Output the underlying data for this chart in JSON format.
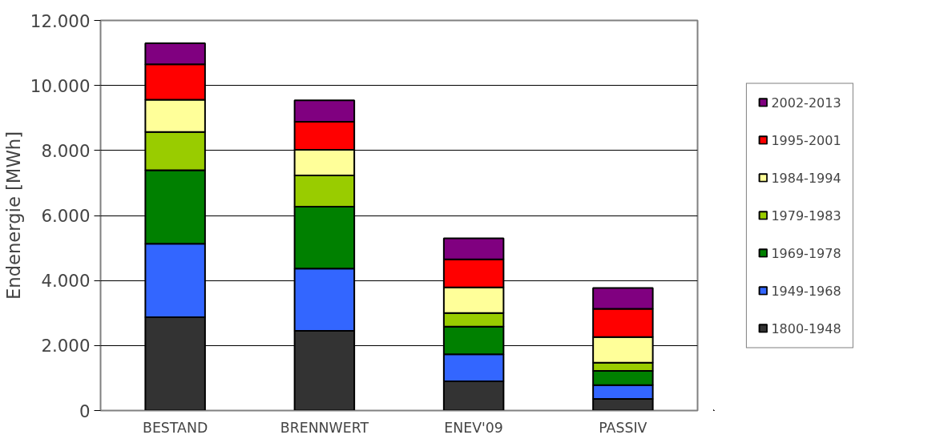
{
  "chart_data": {
    "type": "bar",
    "stacked": true,
    "ylabel": "Endenergie [MWh]",
    "categories": [
      "BESTAND",
      "BRENNWERT",
      "ENEV'09",
      "PASSIV"
    ],
    "series": [
      {
        "name": "1800-1948",
        "color": "#333333",
        "values": [
          2870,
          2450,
          900,
          360
        ]
      },
      {
        "name": "1949-1968",
        "color": "#3366ff",
        "values": [
          2260,
          1920,
          830,
          420
        ]
      },
      {
        "name": "1969-1978",
        "color": "#008000",
        "values": [
          2260,
          1900,
          850,
          440
        ]
      },
      {
        "name": "1979-1983",
        "color": "#99cc00",
        "values": [
          1180,
          960,
          420,
          250
        ]
      },
      {
        "name": "1984-1994",
        "color": "#ffff99",
        "values": [
          990,
          790,
          790,
          790
        ]
      },
      {
        "name": "1995-2001",
        "color": "#ff0000",
        "values": [
          1090,
          860,
          860,
          870
        ]
      },
      {
        "name": "2002-2013",
        "color": "#800080",
        "values": [
          650,
          660,
          650,
          640
        ]
      }
    ],
    "ylim": [
      0,
      12000
    ],
    "yticks": [
      {
        "value": 0,
        "label": "0"
      },
      {
        "value": 2000,
        "label": "2.000"
      },
      {
        "value": 4000,
        "label": "4.000"
      },
      {
        "value": 6000,
        "label": "6.000"
      },
      {
        "value": 8000,
        "label": "8.000"
      },
      {
        "value": 10000,
        "label": "10.000"
      },
      {
        "value": 12000,
        "label": "12.000"
      }
    ],
    "grid": "y",
    "legend": "right"
  }
}
